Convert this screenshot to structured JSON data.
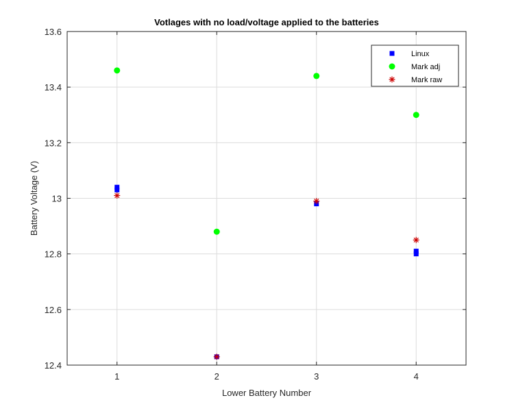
{
  "chart_data": {
    "type": "scatter",
    "title": "Votlages with no load/voltage applied to the batteries",
    "xlabel": "Lower Battery Number",
    "ylabel": "Battery Voltage (V)",
    "xlim": [
      0.5,
      4.5
    ],
    "ylim": [
      12.4,
      13.6
    ],
    "xticks": [
      1,
      2,
      3,
      4
    ],
    "xtick_labels": [
      "1",
      "2",
      "3",
      "4"
    ],
    "yticks": [
      12.4,
      12.6,
      12.8,
      13.0,
      13.2,
      13.4,
      13.6
    ],
    "ytick_labels": [
      "12.4",
      "12.6",
      "12.8",
      "13",
      "13.2",
      "13.4",
      "13.6"
    ],
    "grid": true,
    "legend_position": "top-right",
    "series": [
      {
        "name": "Linux",
        "marker": "square",
        "color": "#0000ff",
        "points": [
          [
            1,
            13.04
          ],
          [
            1,
            13.03
          ],
          [
            2,
            12.43
          ],
          [
            3,
            12.98
          ],
          [
            4,
            12.81
          ],
          [
            4,
            12.8
          ]
        ]
      },
      {
        "name": "Mark adj",
        "marker": "circle",
        "color": "#00ff00",
        "points": [
          [
            1,
            13.46
          ],
          [
            2,
            12.88
          ],
          [
            3,
            13.44
          ],
          [
            4,
            13.3
          ]
        ]
      },
      {
        "name": "Mark raw",
        "marker": "asterisk",
        "color": "#cc0000",
        "points": [
          [
            1,
            13.01
          ],
          [
            2,
            12.43
          ],
          [
            3,
            12.99
          ],
          [
            4,
            12.85
          ]
        ]
      }
    ]
  }
}
